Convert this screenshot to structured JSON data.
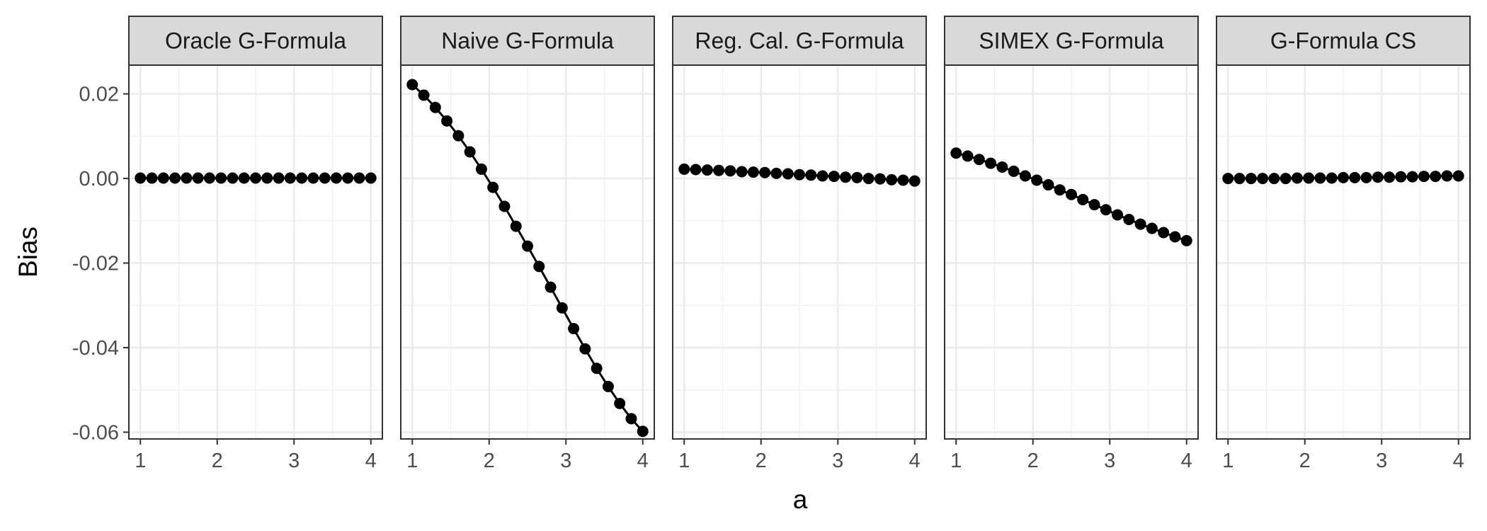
{
  "chart_data": {
    "type": "line",
    "layout": "facet-row",
    "xlabel": "a",
    "ylabel": "Bias",
    "xlim": [
      0.85,
      4.15
    ],
    "ylim": [
      -0.0616,
      0.0268
    ],
    "x_ticks": [
      1,
      2,
      3,
      4
    ],
    "y_ticks": [
      0.02,
      0.0,
      -0.02,
      -0.04,
      -0.06
    ],
    "y_tick_labels": [
      "0.02",
      "0.00",
      "-0.02",
      "-0.04",
      "-0.06"
    ],
    "grid": true,
    "point_color": "#000000",
    "strip_fill": "#d9d9d9",
    "x": [
      1.0,
      1.15,
      1.3,
      1.45,
      1.6,
      1.75,
      1.9,
      2.05,
      2.2,
      2.35,
      2.5,
      2.65,
      2.8,
      2.95,
      3.1,
      3.25,
      3.4,
      3.55,
      3.7,
      3.85,
      4.0
    ],
    "panels": [
      {
        "title": "Oracle G-Formula",
        "values": [
          0.0001,
          0.0001,
          0.0001,
          0.0001,
          0.0001,
          0.0001,
          0.0001,
          0.0001,
          0.0001,
          0.0001,
          0.0001,
          0.0001,
          0.0001,
          0.0001,
          0.0001,
          0.0001,
          0.0001,
          0.0001,
          0.0001,
          0.0001,
          0.0001
        ]
      },
      {
        "title": "Naive G-Formula",
        "values": [
          0.0222,
          0.0197,
          0.0168,
          0.0136,
          0.0101,
          0.0063,
          0.0022,
          -0.0021,
          -0.0066,
          -0.0113,
          -0.016,
          -0.0208,
          -0.0257,
          -0.0306,
          -0.0355,
          -0.0403,
          -0.0449,
          -0.0492,
          -0.0532,
          -0.0568,
          -0.0598
        ]
      },
      {
        "title": "Reg. Cal. G-Formula",
        "values": [
          0.0022,
          0.0021,
          0.002,
          0.0019,
          0.0018,
          0.0016,
          0.0015,
          0.0014,
          0.0012,
          0.0011,
          0.0009,
          0.0008,
          0.0006,
          0.0005,
          0.0003,
          0.0002,
          0.0,
          -0.0001,
          -0.0003,
          -0.0004,
          -0.0006
        ]
      },
      {
        "title": "SIMEX G-Formula",
        "values": [
          0.006,
          0.0053,
          0.0045,
          0.0036,
          0.0027,
          0.0017,
          0.0006,
          -0.0004,
          -0.0015,
          -0.0027,
          -0.0038,
          -0.005,
          -0.0062,
          -0.0074,
          -0.0086,
          -0.0097,
          -0.0108,
          -0.0118,
          -0.0128,
          -0.0138,
          -0.0147
        ]
      },
      {
        "title": "G-Formula CS",
        "values": [
          0.0,
          0.0,
          0.0,
          0.0,
          0.0,
          0.0,
          0.0001,
          0.0001,
          0.0001,
          0.0001,
          0.0002,
          0.0002,
          0.0002,
          0.0003,
          0.0003,
          0.0004,
          0.0004,
          0.0005,
          0.0005,
          0.0006,
          0.0006
        ]
      }
    ]
  }
}
